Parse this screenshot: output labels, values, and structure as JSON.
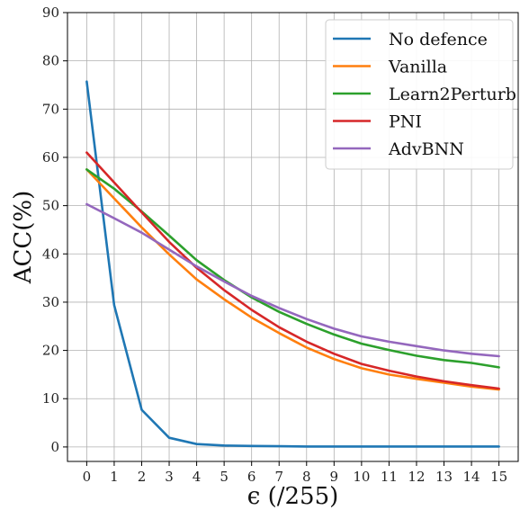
{
  "chart_data": {
    "type": "line",
    "xlabel": "ϵ (/255)",
    "ylabel": "ACC(%)",
    "x": [
      0,
      1,
      2,
      3,
      4,
      5,
      6,
      7,
      8,
      9,
      10,
      11,
      12,
      13,
      14,
      15
    ],
    "xlim": [
      -0.7,
      15.7
    ],
    "ylim": [
      -3,
      90
    ],
    "yticks": [
      0,
      10,
      20,
      30,
      40,
      50,
      60,
      70,
      80,
      90
    ],
    "grid": true,
    "legend_position": "upper right",
    "series": [
      {
        "name": "No defence",
        "color": "#1f77b4",
        "values": [
          75.7,
          29.4,
          7.7,
          1.9,
          0.6,
          0.3,
          0.2,
          0.15,
          0.1,
          0.1,
          0.1,
          0.1,
          0.1,
          0.1,
          0.1,
          0.1
        ]
      },
      {
        "name": "Vanilla",
        "color": "#ff7f0e",
        "values": [
          57.5,
          51.5,
          45.5,
          39.9,
          34.7,
          30.6,
          26.8,
          23.6,
          20.6,
          18.2,
          16.3,
          15.0,
          14.1,
          13.3,
          12.5,
          11.9
        ]
      },
      {
        "name": "Learn2Perturb",
        "color": "#2ca02c",
        "values": [
          57.5,
          53.5,
          48.8,
          43.8,
          38.7,
          34.6,
          31.0,
          28.0,
          25.5,
          23.3,
          21.4,
          20.1,
          18.9,
          18.0,
          17.4,
          16.5
        ]
      },
      {
        "name": "PNI",
        "color": "#d62728",
        "values": [
          61.0,
          54.8,
          48.6,
          42.5,
          37.1,
          32.5,
          28.4,
          24.8,
          21.8,
          19.3,
          17.2,
          15.8,
          14.6,
          13.6,
          12.8,
          12.1
        ]
      },
      {
        "name": "AdvBNN",
        "color": "#9467bd",
        "values": [
          50.3,
          47.4,
          44.4,
          40.9,
          37.4,
          34.3,
          31.3,
          28.8,
          26.5,
          24.5,
          22.9,
          21.8,
          20.9,
          20.0,
          19.3,
          18.8
        ]
      }
    ]
  }
}
